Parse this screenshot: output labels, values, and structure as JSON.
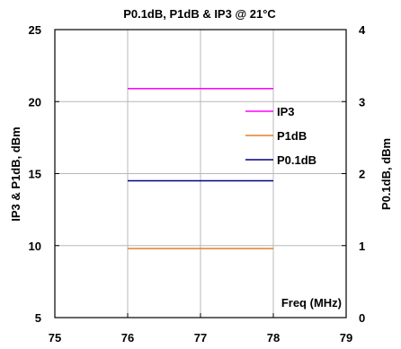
{
  "chart_data": {
    "type": "line",
    "title": "P0.1dB, P1dB & IP3 @ 21°C",
    "ylabel_left": "IP3 & P1dB, dBm",
    "ylabel_right": "P0.1dB, dBm",
    "xlabel": "Freq (MHz)",
    "xlim": [
      75,
      79
    ],
    "ylim_left": [
      5,
      25
    ],
    "ylim_right": [
      0,
      4
    ],
    "x_ticks": [
      "75",
      "76",
      "77",
      "78",
      "79"
    ],
    "y_left_ticks": [
      "5",
      "10",
      "15",
      "20",
      "25"
    ],
    "y_right_ticks": [
      "0",
      "1",
      "2",
      "3",
      "4"
    ],
    "grid": true,
    "legend_position": "right",
    "series": [
      {
        "name": "IP3",
        "axis": "left",
        "color": "#ff00ff",
        "x": [
          76,
          78
        ],
        "y": [
          20.9,
          20.9
        ]
      },
      {
        "name": "P1dB",
        "axis": "left",
        "color": "#e0802a",
        "x": [
          76,
          78
        ],
        "y": [
          9.8,
          9.8
        ]
      },
      {
        "name": "P0.1dB",
        "axis": "right",
        "color": "#00008b",
        "x": [
          76,
          78
        ],
        "y": [
          1.9,
          1.9
        ]
      }
    ]
  }
}
